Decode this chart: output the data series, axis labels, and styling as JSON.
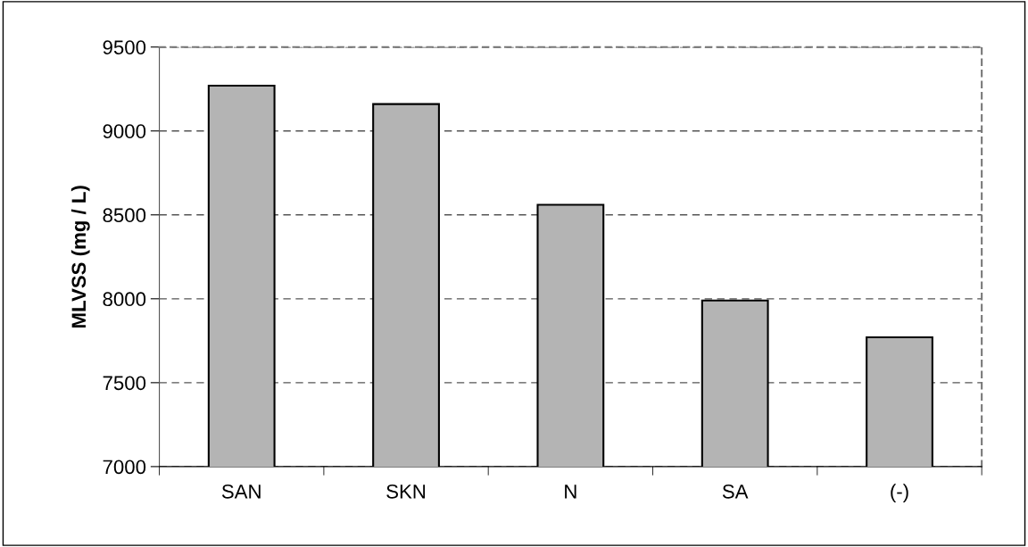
{
  "chart_data": {
    "type": "bar",
    "ylabel": "MLVSS (mg / L)",
    "categories": [
      "SAN",
      "SKN",
      "N",
      "SA",
      "(-)"
    ],
    "values": [
      9270,
      9160,
      8560,
      7990,
      7770
    ],
    "color": "#b4b4b4",
    "ylim": [
      7000,
      9500
    ],
    "yticks": [
      7000,
      7500,
      8000,
      8500,
      9000,
      9500
    ],
    "grid": "y"
  }
}
